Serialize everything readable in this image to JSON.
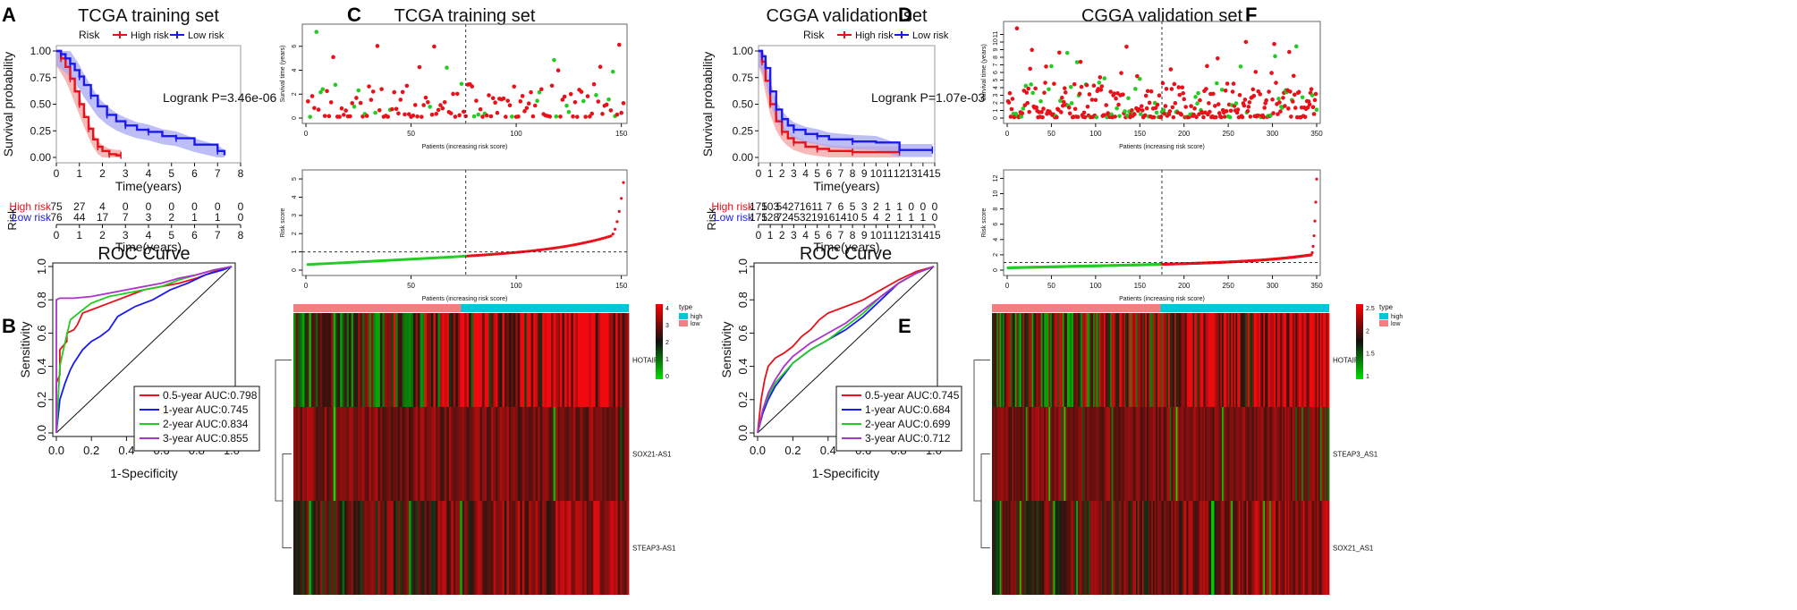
{
  "colors": {
    "high": "#e8111a",
    "low": "#1a1aee",
    "green": "#22cc22",
    "orange": "#f0a000",
    "purple": "#aa33cc",
    "pink": "#f08080",
    "cyan": "#00c8d8"
  },
  "panels": {
    "A": "A",
    "B": "B",
    "C": "C",
    "D": "D",
    "E": "E",
    "F": "F"
  },
  "chart_data": [
    {
      "id": "A",
      "type": "line",
      "title": "TCGA training set",
      "legend": {
        "label": "Risk",
        "items": [
          "High risk",
          "Low risk"
        ]
      },
      "xlabel": "Time(years)",
      "ylabel": "Survival probability",
      "xticks": [
        "0",
        "1",
        "2",
        "3",
        "4",
        "5",
        "6",
        "7",
        "8"
      ],
      "yticks": [
        "0.00",
        "0.25",
        "0.50",
        "0.75",
        "1.00"
      ],
      "xlim": [
        0,
        8
      ],
      "ylim": [
        0,
        1
      ],
      "annotation": "Logrank P=3.46e-06",
      "series": [
        {
          "name": "High risk",
          "x": [
            0,
            0.2,
            0.4,
            0.6,
            0.8,
            1.0,
            1.2,
            1.4,
            1.6,
            1.8,
            2.0,
            2.3,
            2.6,
            2.8
          ],
          "y": [
            1.0,
            0.93,
            0.85,
            0.74,
            0.62,
            0.5,
            0.38,
            0.27,
            0.17,
            0.1,
            0.06,
            0.03,
            0.02,
            0.02
          ]
        },
        {
          "name": "Low risk",
          "x": [
            0,
            0.2,
            0.4,
            0.6,
            0.8,
            1.0,
            1.2,
            1.5,
            1.8,
            2.2,
            2.6,
            3.0,
            3.5,
            4.0,
            4.6,
            5.2,
            6.0,
            7.0,
            7.3
          ],
          "y": [
            1.0,
            0.97,
            0.93,
            0.88,
            0.82,
            0.76,
            0.68,
            0.58,
            0.48,
            0.4,
            0.34,
            0.3,
            0.26,
            0.24,
            0.2,
            0.18,
            0.12,
            0.06,
            0.02
          ]
        }
      ],
      "risk_table": {
        "label": "Risk",
        "rows": [
          {
            "name": "High risk",
            "values": [
              "75",
              "27",
              "4",
              "0",
              "0",
              "0",
              "0",
              "0",
              "0"
            ]
          },
          {
            "name": "Low risk",
            "values": [
              "76",
              "44",
              "17",
              "7",
              "3",
              "2",
              "1",
              "1",
              "0"
            ]
          }
        ],
        "xlabel": "Time(years)"
      }
    },
    {
      "id": "B",
      "type": "line",
      "title": "ROC Curve",
      "xlabel": "1-Specificity",
      "ylabel": "Sensitivity",
      "xticks": [
        "0.0",
        "0.2",
        "0.4",
        "0.6",
        "0.8",
        "1.0"
      ],
      "yticks": [
        "0.0",
        "0.2",
        "0.4",
        "0.6",
        "0.8",
        "1.0"
      ],
      "xlim": [
        0,
        1
      ],
      "ylim": [
        0,
        1
      ],
      "series": [
        {
          "name": "0.5-year",
          "auc_label": "0.5-year AUC:0.798",
          "x": [
            0,
            0,
            0.02,
            0.02,
            0.06,
            0.06,
            0.1,
            0.12,
            0.15,
            0.2,
            0.3,
            0.4,
            0.5,
            0.6,
            0.7,
            0.8,
            0.9,
            1.0
          ],
          "y": [
            0,
            0.3,
            0.35,
            0.5,
            0.55,
            0.6,
            0.62,
            0.65,
            0.72,
            0.74,
            0.78,
            0.82,
            0.86,
            0.88,
            0.9,
            0.93,
            0.97,
            1.0
          ]
        },
        {
          "name": "1-year",
          "auc_label": "1-year AUC:0.745",
          "x": [
            0,
            0.02,
            0.05,
            0.08,
            0.1,
            0.15,
            0.2,
            0.25,
            0.3,
            0.35,
            0.45,
            0.55,
            0.65,
            0.75,
            0.85,
            0.95,
            1.0
          ],
          "y": [
            0,
            0.2,
            0.3,
            0.38,
            0.42,
            0.5,
            0.55,
            0.58,
            0.62,
            0.7,
            0.76,
            0.8,
            0.86,
            0.9,
            0.95,
            0.98,
            1.0
          ]
        },
        {
          "name": "2-year",
          "auc_label": "2-year AUC:0.834",
          "x": [
            0,
            0.02,
            0.04,
            0.08,
            0.15,
            0.2,
            0.3,
            0.4,
            0.5,
            0.6,
            0.7,
            0.8,
            0.9,
            1.0
          ],
          "y": [
            0,
            0.4,
            0.5,
            0.68,
            0.74,
            0.78,
            0.82,
            0.84,
            0.86,
            0.88,
            0.92,
            0.95,
            0.98,
            1.0
          ]
        },
        {
          "name": "3-year",
          "auc_label": "3-year AUC:0.855",
          "x": [
            0,
            0,
            0.02,
            0.05,
            0.1,
            0.2,
            0.3,
            0.4,
            0.5,
            0.6,
            0.7,
            0.8,
            0.9,
            1.0
          ],
          "y": [
            0,
            0.8,
            0.81,
            0.81,
            0.81,
            0.82,
            0.84,
            0.86,
            0.88,
            0.9,
            0.93,
            0.95,
            0.98,
            1.0
          ]
        }
      ]
    },
    {
      "id": "C",
      "type": "scatter",
      "title": "TCGA training set",
      "n_patients": 151,
      "survival": {
        "ylabel": "Survival time (years)",
        "xlabel": "Patients (increasing risk score)",
        "xticks": [
          "0",
          "50",
          "100",
          "150"
        ],
        "yticks": [
          "0",
          "2",
          "4",
          "6"
        ],
        "ylim": [
          0,
          7.4
        ],
        "max_point": 7.2
      },
      "riskscore": {
        "ylabel": "Risk score",
        "xlabel": "Patients (increasing risk score)",
        "xticks": [
          "0",
          "50",
          "100",
          "150"
        ],
        "yticks": [
          "0",
          "1",
          "2",
          "3",
          "4",
          "5"
        ],
        "ylim": [
          0,
          5.2
        ],
        "cutoff": 1.0,
        "max_value": 4.9
      },
      "heatmap": {
        "genes": [
          "HOTAIR",
          "SOX21-AS1",
          "STEAP3-AS1"
        ],
        "type_legend": {
          "title": "type",
          "items": [
            "high",
            "low"
          ]
        },
        "scale_ticks": [
          "0",
          "1",
          "2",
          "3",
          "4"
        ]
      }
    },
    {
      "id": "D",
      "type": "line",
      "title": "CGGA validation set",
      "legend": {
        "label": "Risk",
        "items": [
          "High risk",
          "Low risk"
        ]
      },
      "xlabel": "Time(years)",
      "ylabel": "Survival probability",
      "xticks": [
        "0",
        "1",
        "2",
        "3",
        "4",
        "5",
        "6",
        "7",
        "8",
        "9",
        "10",
        "11",
        "12",
        "13",
        "14",
        "15"
      ],
      "yticks": [
        "0.00",
        "0.25",
        "0.50",
        "0.75",
        "1.00"
      ],
      "xlim": [
        0,
        15
      ],
      "ylim": [
        0,
        1
      ],
      "annotation": "Logrank P=1.07e-03",
      "series": [
        {
          "name": "High risk",
          "x": [
            0,
            0.3,
            0.6,
            1.0,
            1.5,
            2.0,
            2.5,
            3.0,
            4.0,
            5.0,
            6.0,
            8.0,
            10.0,
            12.0
          ],
          "y": [
            1.0,
            0.9,
            0.72,
            0.5,
            0.34,
            0.24,
            0.18,
            0.14,
            0.1,
            0.08,
            0.06,
            0.05,
            0.05,
            0.05
          ]
        },
        {
          "name": "Low risk",
          "x": [
            0,
            0.3,
            0.6,
            1.0,
            1.5,
            2.0,
            2.5,
            3.0,
            4.0,
            5.0,
            6.0,
            8.0,
            10.0,
            12.0,
            14.0,
            14.8
          ],
          "y": [
            1.0,
            0.95,
            0.84,
            0.62,
            0.45,
            0.36,
            0.3,
            0.26,
            0.22,
            0.2,
            0.17,
            0.15,
            0.14,
            0.07,
            0.07,
            0.07
          ]
        }
      ],
      "risk_table": {
        "label": "Risk",
        "rows": [
          {
            "name": "High risk",
            "values": [
              "175",
              "103",
              "54",
              "27",
              "16",
              "11",
              "7",
              "6",
              "5",
              "3",
              "2",
              "1",
              "1",
              "0",
              "0",
              "0"
            ]
          },
          {
            "name": "Low risk",
            "values": [
              "175",
              "128",
              "72",
              "45",
              "32",
              "19",
              "16",
              "14",
              "10",
              "5",
              "4",
              "2",
              "1",
              "1",
              "1",
              "0"
            ]
          }
        ],
        "xlabel": "Time(years)"
      }
    },
    {
      "id": "E",
      "type": "line",
      "title": "ROC Curve",
      "xlabel": "1-Specificity",
      "ylabel": "Sensitivity",
      "xticks": [
        "0.0",
        "0.2",
        "0.4",
        "0.6",
        "0.8",
        "1.0"
      ],
      "yticks": [
        "0.0",
        "0.2",
        "0.4",
        "0.6",
        "0.8",
        "1.0"
      ],
      "xlim": [
        0,
        1
      ],
      "ylim": [
        0,
        1
      ],
      "series": [
        {
          "name": "0.5-year",
          "auc_label": "0.5-year AUC:0.745",
          "x": [
            0,
            0.02,
            0.04,
            0.06,
            0.1,
            0.15,
            0.2,
            0.25,
            0.3,
            0.35,
            0.4,
            0.5,
            0.6,
            0.7,
            0.8,
            0.9,
            1.0
          ],
          "y": [
            0,
            0.2,
            0.32,
            0.4,
            0.45,
            0.48,
            0.52,
            0.58,
            0.62,
            0.68,
            0.72,
            0.76,
            0.8,
            0.86,
            0.92,
            0.97,
            1.0
          ]
        },
        {
          "name": "1-year",
          "auc_label": "1-year AUC:0.684",
          "x": [
            0,
            0.03,
            0.06,
            0.1,
            0.15,
            0.2,
            0.3,
            0.4,
            0.5,
            0.6,
            0.7,
            0.8,
            0.9,
            1.0
          ],
          "y": [
            0,
            0.12,
            0.2,
            0.28,
            0.35,
            0.42,
            0.5,
            0.56,
            0.62,
            0.7,
            0.8,
            0.9,
            0.96,
            1.0
          ]
        },
        {
          "name": "2-year",
          "auc_label": "2-year AUC:0.699",
          "x": [
            0,
            0.03,
            0.06,
            0.1,
            0.15,
            0.2,
            0.3,
            0.4,
            0.5,
            0.6,
            0.7,
            0.8,
            0.9,
            1.0
          ],
          "y": [
            0,
            0.14,
            0.22,
            0.3,
            0.36,
            0.42,
            0.5,
            0.56,
            0.64,
            0.72,
            0.82,
            0.9,
            0.96,
            1.0
          ]
        },
        {
          "name": "3-year",
          "auc_label": "3-year AUC:0.712",
          "x": [
            0,
            0.03,
            0.06,
            0.1,
            0.15,
            0.2,
            0.3,
            0.4,
            0.5,
            0.6,
            0.7,
            0.8,
            0.9,
            1.0
          ],
          "y": [
            0,
            0.14,
            0.24,
            0.32,
            0.4,
            0.46,
            0.54,
            0.6,
            0.66,
            0.74,
            0.82,
            0.9,
            0.96,
            1.0
          ]
        }
      ]
    },
    {
      "id": "F",
      "type": "scatter",
      "title": "CGGA validation set",
      "n_patients": 350,
      "survival": {
        "ylabel": "Survival time (years)",
        "xlabel": "Patients (increasing risk score)",
        "xticks": [
          "0",
          "50",
          "100",
          "150",
          "200",
          "250",
          "300",
          "350"
        ],
        "yticks": [
          "0",
          "1",
          "2",
          "3",
          "4",
          "5",
          "6",
          "7",
          "8",
          "9",
          "10",
          "11"
        ],
        "ylim": [
          0,
          12
        ],
        "max_point": 11.8
      },
      "riskscore": {
        "ylabel": "Risk score",
        "xlabel": "Patients (increasing risk score)",
        "xticks": [
          "0",
          "50",
          "100",
          "150",
          "200",
          "250",
          "300",
          "350"
        ],
        "yticks": [
          "0",
          "2",
          "4",
          "6",
          "8",
          "10",
          "12"
        ],
        "ylim": [
          0,
          12.4
        ],
        "cutoff": 1.0,
        "max_value": 12.0
      },
      "heatmap": {
        "genes": [
          "HOTAIR",
          "STEAP3_AS1",
          "SOX21_AS1"
        ],
        "type_legend": {
          "title": "type",
          "items": [
            "high",
            "low"
          ]
        },
        "scale_ticks": [
          "1",
          "1.5",
          "2",
          "2.5"
        ]
      }
    }
  ]
}
